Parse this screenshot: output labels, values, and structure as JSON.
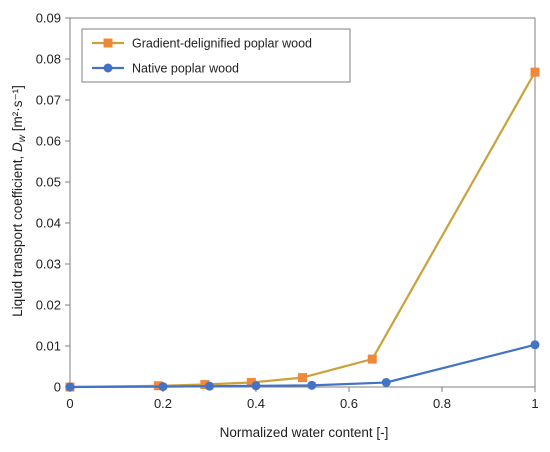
{
  "chart_data": {
    "type": "line",
    "xlabel": "Normalized water content [-]",
    "ylabel": {
      "prefix": "Liquid transport coefficient, ",
      "symbol": "D",
      "subscript": "w",
      "unit": " [m²·s⁻¹]"
    },
    "xlim": [
      0,
      1
    ],
    "ylim": [
      0,
      0.09
    ],
    "x_ticks": [
      0,
      0.2,
      0.4,
      0.6,
      0.8,
      1
    ],
    "x_tick_labels": [
      "0",
      "0.2",
      "0.4",
      "0.6",
      "0.8",
      "1"
    ],
    "y_ticks": [
      0,
      0.01,
      0.02,
      0.03,
      0.04,
      0.05,
      0.06,
      0.07,
      0.08,
      0.09
    ],
    "y_tick_labels": [
      "0",
      "0.01",
      "0.02",
      "0.03",
      "0.04",
      "0.05",
      "0.06",
      "0.07",
      "0.08",
      "0.09"
    ],
    "grid": false,
    "legend_position": "top-left",
    "series": [
      {
        "name": "Gradient-delignified poplar wood",
        "marker": "square",
        "color": "#F0883A",
        "line_color": "#C9A23C",
        "x": [
          0,
          0.19,
          0.29,
          0.39,
          0.5,
          0.65,
          1
        ],
        "y": [
          0,
          0.0003,
          0.0006,
          0.0011,
          0.0023,
          0.0068,
          0.0768
        ]
      },
      {
        "name": "Native poplar wood",
        "marker": "circle",
        "color": "#4472C4",
        "line_color": "#4472C4",
        "x": [
          0,
          0.2,
          0.3,
          0.4,
          0.52,
          0.68,
          1
        ],
        "y": [
          0,
          0.0001,
          0.0002,
          0.0003,
          0.0004,
          0.0011,
          0.0103
        ]
      }
    ]
  }
}
